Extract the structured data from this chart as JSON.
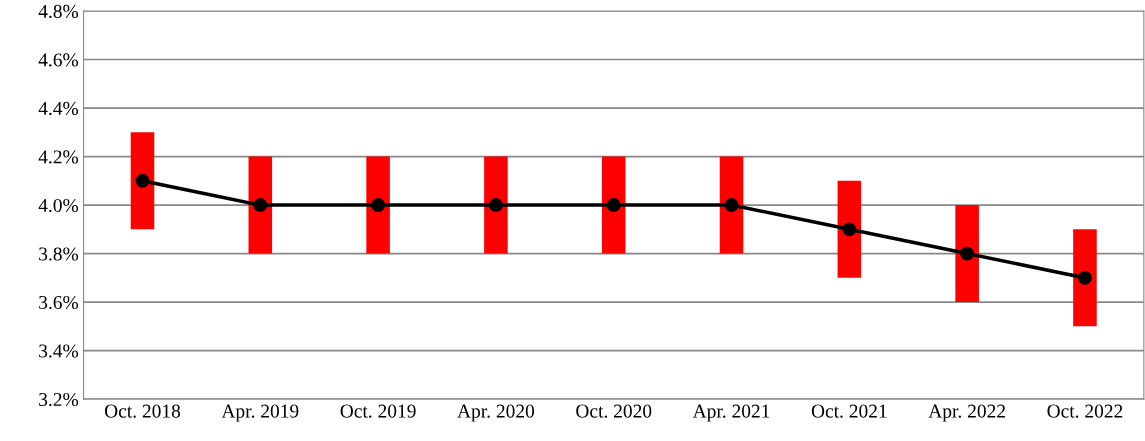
{
  "chart_data": {
    "type": "line",
    "categories": [
      "Oct. 2018",
      "Apr. 2019",
      "Oct. 2019",
      "Apr. 2020",
      "Oct. 2020",
      "Apr. 2021",
      "Oct. 2021",
      "Apr. 2022",
      "Oct. 2022"
    ],
    "series": [
      {
        "type": "bar",
        "color": "#ff0000",
        "values": [
          0.4,
          0.4,
          0.4,
          0.4,
          0.4,
          0.4,
          0.4,
          0.4,
          0.4
        ],
        "base": [
          3.9,
          3.8,
          3.8,
          3.8,
          3.8,
          3.8,
          3.7,
          3.6,
          3.5
        ]
      },
      {
        "color": "#000000",
        "values": [
          4.1,
          4.0,
          4.0,
          4.0,
          4.0,
          4.0,
          3.9,
          3.8,
          3.7
        ]
      }
    ],
    "ylim": [
      3.2,
      4.8
    ],
    "yticks": [
      {
        "value": 3.2,
        "label": "3.2%"
      },
      {
        "value": 3.4,
        "label": "3.4%"
      },
      {
        "value": 3.6,
        "label": "3.6%"
      },
      {
        "value": 3.8,
        "label": "3.8%"
      },
      {
        "value": 4.0,
        "label": "4.0%"
      },
      {
        "value": 4.2,
        "label": "4.2%"
      },
      {
        "value": 4.4,
        "label": "4.4%"
      },
      {
        "value": 4.6,
        "label": "4.6%"
      },
      {
        "value": 4.8,
        "label": "4.8%"
      }
    ],
    "grid": "y",
    "marker": "circle",
    "line_style": "solid"
  }
}
